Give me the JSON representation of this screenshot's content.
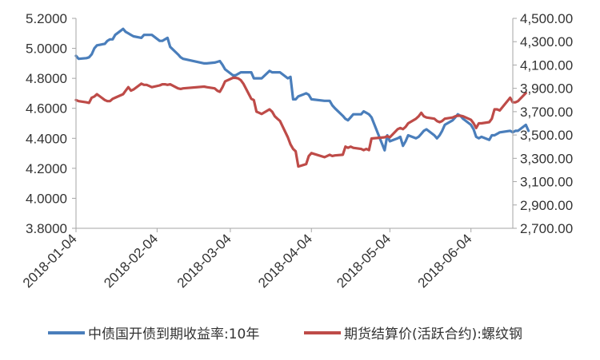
{
  "chart_data": {
    "type": "line",
    "title": "",
    "xlabel": "",
    "ylabel": "",
    "x_ticks": [
      "2018-01-04",
      "2018-02-04",
      "2018-03-04",
      "2018-04-04",
      "2018-05-04",
      "2018-06-04"
    ],
    "x_range": [
      "2018-01-04",
      "2018-06-20"
    ],
    "y_left": {
      "min": 3.8,
      "max": 5.2,
      "step": 0.2,
      "ticks": [
        "3.8000",
        "4.0000",
        "4.2000",
        "4.4000",
        "4.6000",
        "4.8000",
        "5.0000",
        "5.2000"
      ]
    },
    "y_right": {
      "min": 2700,
      "max": 4500,
      "step": 200,
      "ticks": [
        "2,700.00",
        "2,900.00",
        "3,100.00",
        "3,300.00",
        "3,500.00",
        "3,700.00",
        "3,900.00",
        "4,100.00",
        "4,300.00",
        "4,500.00"
      ]
    },
    "grid": false,
    "legend_position": "bottom",
    "series": [
      {
        "name": "中债国开债到期收益率:10年",
        "axis": "left",
        "color": "#4a7ebb",
        "points": [
          [
            "2018-01-04",
            4.95
          ],
          [
            "2018-01-05",
            4.93
          ],
          [
            "2018-01-08",
            4.935
          ],
          [
            "2018-01-09",
            4.94
          ],
          [
            "2018-01-10",
            4.96
          ],
          [
            "2018-01-11",
            5.0
          ],
          [
            "2018-01-12",
            5.02
          ],
          [
            "2018-01-15",
            5.03
          ],
          [
            "2018-01-16",
            5.05
          ],
          [
            "2018-01-17",
            5.06
          ],
          [
            "2018-01-18",
            5.06
          ],
          [
            "2018-01-19",
            5.09
          ],
          [
            "2018-01-22",
            5.13
          ],
          [
            "2018-01-23",
            5.11
          ],
          [
            "2018-01-24",
            5.1
          ],
          [
            "2018-01-25",
            5.09
          ],
          [
            "2018-01-26",
            5.08
          ],
          [
            "2018-01-29",
            5.07
          ],
          [
            "2018-01-30",
            5.09
          ],
          [
            "2018-01-31",
            5.09
          ],
          [
            "2018-02-01",
            5.09
          ],
          [
            "2018-02-02",
            5.09
          ],
          [
            "2018-02-05",
            5.05
          ],
          [
            "2018-02-06",
            5.05
          ],
          [
            "2018-02-07",
            5.06
          ],
          [
            "2018-02-08",
            5.07
          ],
          [
            "2018-02-09",
            5.01
          ],
          [
            "2018-02-12",
            4.96
          ],
          [
            "2018-02-13",
            4.94
          ],
          [
            "2018-02-14",
            4.93
          ],
          [
            "2018-02-22",
            4.9
          ],
          [
            "2018-02-23",
            4.9
          ],
          [
            "2018-02-26",
            4.905
          ],
          [
            "2018-02-27",
            4.91
          ],
          [
            "2018-02-28",
            4.915
          ],
          [
            "2018-03-01",
            4.89
          ],
          [
            "2018-03-02",
            4.86
          ],
          [
            "2018-03-05",
            4.82
          ],
          [
            "2018-03-06",
            4.82
          ],
          [
            "2018-03-07",
            4.83
          ],
          [
            "2018-03-08",
            4.84
          ],
          [
            "2018-03-09",
            4.84
          ],
          [
            "2018-03-12",
            4.84
          ],
          [
            "2018-03-13",
            4.8
          ],
          [
            "2018-03-14",
            4.8
          ],
          [
            "2018-03-15",
            4.8
          ],
          [
            "2018-03-16",
            4.8
          ],
          [
            "2018-03-19",
            4.85
          ],
          [
            "2018-03-20",
            4.84
          ],
          [
            "2018-03-21",
            4.84
          ],
          [
            "2018-03-22",
            4.84
          ],
          [
            "2018-03-23",
            4.84
          ],
          [
            "2018-03-26",
            4.8
          ],
          [
            "2018-03-27",
            4.81
          ],
          [
            "2018-03-28",
            4.66
          ],
          [
            "2018-03-29",
            4.66
          ],
          [
            "2018-03-30",
            4.68
          ],
          [
            "2018-04-02",
            4.7
          ],
          [
            "2018-04-03",
            4.69
          ],
          [
            "2018-04-04",
            4.66
          ],
          [
            "2018-04-09",
            4.65
          ],
          [
            "2018-04-10",
            4.65
          ],
          [
            "2018-04-11",
            4.65
          ],
          [
            "2018-04-12",
            4.62
          ],
          [
            "2018-04-13",
            4.6
          ],
          [
            "2018-04-16",
            4.55
          ],
          [
            "2018-04-17",
            4.53
          ],
          [
            "2018-04-18",
            4.52
          ],
          [
            "2018-04-19",
            4.54
          ],
          [
            "2018-04-20",
            4.56
          ],
          [
            "2018-04-23",
            4.56
          ],
          [
            "2018-04-24",
            4.58
          ],
          [
            "2018-04-25",
            4.57
          ],
          [
            "2018-04-26",
            4.56
          ],
          [
            "2018-04-27",
            4.54
          ],
          [
            "2018-05-02",
            4.32
          ],
          [
            "2018-05-03",
            4.42
          ],
          [
            "2018-05-04",
            4.38
          ],
          [
            "2018-05-07",
            4.4
          ],
          [
            "2018-05-08",
            4.41
          ],
          [
            "2018-05-09",
            4.35
          ],
          [
            "2018-05-10",
            4.38
          ],
          [
            "2018-05-11",
            4.42
          ],
          [
            "2018-05-14",
            4.4
          ],
          [
            "2018-05-15",
            4.41
          ],
          [
            "2018-05-16",
            4.43
          ],
          [
            "2018-05-17",
            4.45
          ],
          [
            "2018-05-18",
            4.46
          ],
          [
            "2018-05-21",
            4.42
          ],
          [
            "2018-05-22",
            4.4
          ],
          [
            "2018-05-23",
            4.42
          ],
          [
            "2018-05-24",
            4.45
          ],
          [
            "2018-05-25",
            4.49
          ],
          [
            "2018-05-28",
            4.52
          ],
          [
            "2018-05-29",
            4.54
          ],
          [
            "2018-05-30",
            4.56
          ],
          [
            "2018-05-31",
            4.55
          ],
          [
            "2018-06-01",
            4.53
          ],
          [
            "2018-06-04",
            4.49
          ],
          [
            "2018-06-05",
            4.46
          ],
          [
            "2018-06-06",
            4.41
          ],
          [
            "2018-06-07",
            4.4
          ],
          [
            "2018-06-08",
            4.41
          ],
          [
            "2018-06-11",
            4.39
          ],
          [
            "2018-06-12",
            4.42
          ],
          [
            "2018-06-13",
            4.42
          ],
          [
            "2018-06-14",
            4.43
          ],
          [
            "2018-06-15",
            4.44
          ],
          [
            "2018-06-19",
            4.45
          ],
          [
            "2018-06-20",
            4.44
          ],
          [
            "2018-06-21",
            4.45
          ],
          [
            "2018-06-22",
            4.45
          ],
          [
            "2018-06-25",
            4.49
          ],
          [
            "2018-06-26",
            4.45
          ]
        ]
      },
      {
        "name": "期货结算价(活跃合约):螺纹钢",
        "axis": "right",
        "color": "#be4b48",
        "points": [
          [
            "2018-01-04",
            3800
          ],
          [
            "2018-01-05",
            3790
          ],
          [
            "2018-01-08",
            3780
          ],
          [
            "2018-01-09",
            3775
          ],
          [
            "2018-01-10",
            3820
          ],
          [
            "2018-01-11",
            3830
          ],
          [
            "2018-01-12",
            3850
          ],
          [
            "2018-01-15",
            3800
          ],
          [
            "2018-01-16",
            3790
          ],
          [
            "2018-01-17",
            3790
          ],
          [
            "2018-01-18",
            3810
          ],
          [
            "2018-01-19",
            3820
          ],
          [
            "2018-01-22",
            3850
          ],
          [
            "2018-01-23",
            3880
          ],
          [
            "2018-01-24",
            3910
          ],
          [
            "2018-01-25",
            3880
          ],
          [
            "2018-01-26",
            3890
          ],
          [
            "2018-01-29",
            3940
          ],
          [
            "2018-01-30",
            3930
          ],
          [
            "2018-01-31",
            3930
          ],
          [
            "2018-02-01",
            3920
          ],
          [
            "2018-02-02",
            3910
          ],
          [
            "2018-02-05",
            3925
          ],
          [
            "2018-02-06",
            3935
          ],
          [
            "2018-02-07",
            3935
          ],
          [
            "2018-02-08",
            3930
          ],
          [
            "2018-02-09",
            3935
          ],
          [
            "2018-02-12",
            3900
          ],
          [
            "2018-02-13",
            3895
          ],
          [
            "2018-02-14",
            3900
          ],
          [
            "2018-02-22",
            3915
          ],
          [
            "2018-02-23",
            3910
          ],
          [
            "2018-02-26",
            3900
          ],
          [
            "2018-02-27",
            3880
          ],
          [
            "2018-02-28",
            3870
          ],
          [
            "2018-03-01",
            3910
          ],
          [
            "2018-03-02",
            3960
          ],
          [
            "2018-03-05",
            3990
          ],
          [
            "2018-03-06",
            3990
          ],
          [
            "2018-03-07",
            3985
          ],
          [
            "2018-03-08",
            3970
          ],
          [
            "2018-03-09",
            3940
          ],
          [
            "2018-03-12",
            3810
          ],
          [
            "2018-03-13",
            3800
          ],
          [
            "2018-03-14",
            3700
          ],
          [
            "2018-03-15",
            3690
          ],
          [
            "2018-03-16",
            3680
          ],
          [
            "2018-03-19",
            3720
          ],
          [
            "2018-03-20",
            3700
          ],
          [
            "2018-03-21",
            3660
          ],
          [
            "2018-03-22",
            3640
          ],
          [
            "2018-03-23",
            3620
          ],
          [
            "2018-03-26",
            3480
          ],
          [
            "2018-03-27",
            3420
          ],
          [
            "2018-03-28",
            3380
          ],
          [
            "2018-03-29",
            3360
          ],
          [
            "2018-03-30",
            3230
          ],
          [
            "2018-04-02",
            3250
          ],
          [
            "2018-04-03",
            3320
          ],
          [
            "2018-04-04",
            3345
          ],
          [
            "2018-04-09",
            3310
          ],
          [
            "2018-04-10",
            3320
          ],
          [
            "2018-04-11",
            3330
          ],
          [
            "2018-04-12",
            3320
          ],
          [
            "2018-04-13",
            3325
          ],
          [
            "2018-04-16",
            3330
          ],
          [
            "2018-04-17",
            3400
          ],
          [
            "2018-04-18",
            3390
          ],
          [
            "2018-04-19",
            3400
          ],
          [
            "2018-04-20",
            3390
          ],
          [
            "2018-04-23",
            3380
          ],
          [
            "2018-04-24",
            3370
          ],
          [
            "2018-04-25",
            3380
          ],
          [
            "2018-04-26",
            3370
          ],
          [
            "2018-04-27",
            3470
          ],
          [
            "2018-05-02",
            3480
          ],
          [
            "2018-05-03",
            3490
          ],
          [
            "2018-05-04",
            3480
          ],
          [
            "2018-05-07",
            3550
          ],
          [
            "2018-05-08",
            3560
          ],
          [
            "2018-05-09",
            3550
          ],
          [
            "2018-05-10",
            3570
          ],
          [
            "2018-05-11",
            3600
          ],
          [
            "2018-05-14",
            3640
          ],
          [
            "2018-05-15",
            3660
          ],
          [
            "2018-05-16",
            3690
          ],
          [
            "2018-05-17",
            3660
          ],
          [
            "2018-05-18",
            3650
          ],
          [
            "2018-05-21",
            3640
          ],
          [
            "2018-05-22",
            3620
          ],
          [
            "2018-05-23",
            3610
          ],
          [
            "2018-05-24",
            3620
          ],
          [
            "2018-05-25",
            3640
          ],
          [
            "2018-05-28",
            3650
          ],
          [
            "2018-05-29",
            3660
          ],
          [
            "2018-05-30",
            3665
          ],
          [
            "2018-05-31",
            3665
          ],
          [
            "2018-06-01",
            3660
          ],
          [
            "2018-06-04",
            3630
          ],
          [
            "2018-06-05",
            3600
          ],
          [
            "2018-06-06",
            3560
          ],
          [
            "2018-06-07",
            3600
          ],
          [
            "2018-06-08",
            3600
          ],
          [
            "2018-06-11",
            3610
          ],
          [
            "2018-06-12",
            3640
          ],
          [
            "2018-06-13",
            3720
          ],
          [
            "2018-06-14",
            3720
          ],
          [
            "2018-06-15",
            3710
          ],
          [
            "2018-06-19",
            3820
          ],
          [
            "2018-06-20",
            3780
          ],
          [
            "2018-06-21",
            3780
          ],
          [
            "2018-06-22",
            3790
          ],
          [
            "2018-06-25",
            3860
          ]
        ]
      }
    ]
  }
}
